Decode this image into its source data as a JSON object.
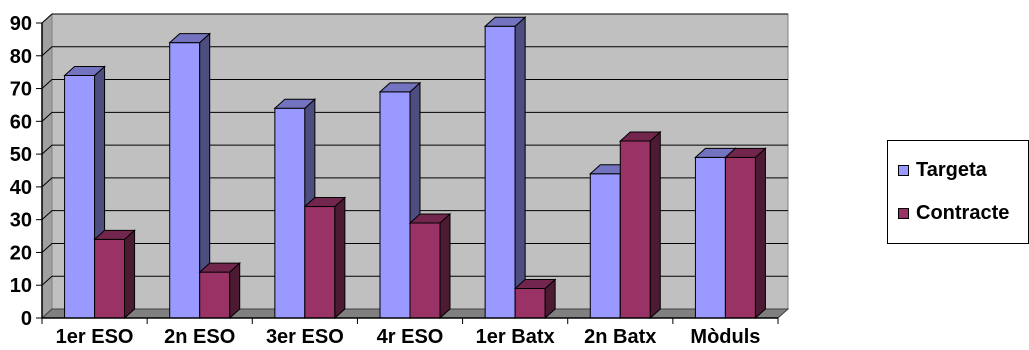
{
  "chart_data": {
    "type": "bar",
    "categories": [
      "1er ESO",
      "2n ESO",
      "3er ESO",
      "4r ESO",
      "1er Batx",
      "2n Batx",
      "Mòduls"
    ],
    "series": [
      {
        "name": "Targeta",
        "values": [
          74,
          84,
          64,
          69,
          89,
          44,
          49
        ],
        "color": "#9999ff"
      },
      {
        "name": "Contracte",
        "values": [
          24,
          14,
          34,
          29,
          9,
          54,
          49
        ],
        "color": "#993366"
      }
    ],
    "y_ticks": [
      "0",
      "10",
      "20",
      "30",
      "40",
      "50",
      "60",
      "70",
      "80",
      "90"
    ],
    "ylim": [
      0,
      90
    ],
    "grid": true,
    "legend": "right",
    "title": "",
    "xlabel": "",
    "ylabel": ""
  },
  "colors": {
    "wall": "#c0c0c0",
    "floor": "#808080"
  }
}
